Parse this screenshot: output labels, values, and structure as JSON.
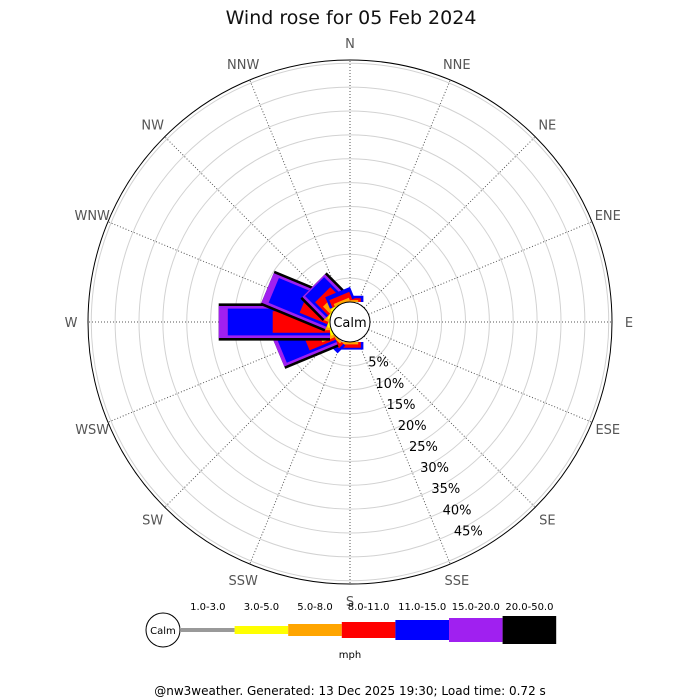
{
  "chart_data": {
    "type": "wind-rose",
    "title": "Wind rose for 05 Feb 2024",
    "calm_label": "Calm",
    "unit": "mph",
    "directions": [
      "N",
      "NNE",
      "NE",
      "ENE",
      "E",
      "ESE",
      "SE",
      "SSE",
      "S",
      "SSW",
      "SW",
      "WSW",
      "W",
      "WNW",
      "NW",
      "NNW"
    ],
    "radial_ticks": [
      "5%",
      "10%",
      "15%",
      "20%",
      "25%",
      "30%",
      "35%",
      "40%",
      "45%"
    ],
    "bins": [
      {
        "label": "1.0-3.0",
        "color": "#999999"
      },
      {
        "label": "3.0-5.0",
        "color": "#ffff00"
      },
      {
        "label": "5.0-8.0",
        "color": "#ffa500"
      },
      {
        "label": "8.0-11.0",
        "color": "#ff0000"
      },
      {
        "label": "11.0-15.0",
        "color": "#0000ff"
      },
      {
        "label": "15.0-20.0",
        "color": "#a020f0"
      },
      {
        "label": "20.0-50.0",
        "color": "#000000"
      }
    ],
    "cumulative_percent": {
      "N": [
        0,
        0,
        0.4,
        0.8,
        1.3,
        0,
        0
      ],
      "NNE": [
        0,
        0,
        0,
        0,
        0,
        0,
        0
      ],
      "NE": [
        0,
        0,
        0,
        0,
        0,
        0,
        0
      ],
      "ENE": [
        0,
        0,
        0,
        0,
        0,
        0,
        0
      ],
      "E": [
        0,
        0,
        0,
        0,
        0,
        0,
        0
      ],
      "ESE": [
        0,
        0,
        0,
        0,
        0,
        0,
        0
      ],
      "SE": [
        0,
        0,
        0,
        0,
        0,
        0,
        0
      ],
      "SSE": [
        0,
        0,
        0,
        0,
        0,
        0,
        0
      ],
      "S": [
        0,
        0,
        0.5,
        1.2,
        1.6,
        0,
        0
      ],
      "SSW": [
        0,
        0,
        0,
        0,
        0,
        0,
        0
      ],
      "SW": [
        0,
        0,
        0.5,
        1.3,
        2.3,
        0,
        0
      ],
      "WSW": [
        0,
        0.5,
        2.8,
        5.9,
        11.3,
        12.1,
        12.1
      ],
      "W": [
        0,
        0.5,
        2.0,
        12.0,
        21.4,
        23.3,
        23.3
      ],
      "WNW": [
        0,
        0.4,
        2.0,
        6.3,
        13.1,
        14.5,
        14.5
      ],
      "NW": [
        0,
        0.4,
        2.1,
        3.9,
        6.3,
        6.6,
        6.6
      ],
      "NNW": [
        0,
        0,
        0.6,
        1.7,
        2.6,
        0,
        0
      ]
    },
    "footer": "@nw3weather. Generated: 13 Dec 2025 19:30; Load time: 0.72 s"
  }
}
